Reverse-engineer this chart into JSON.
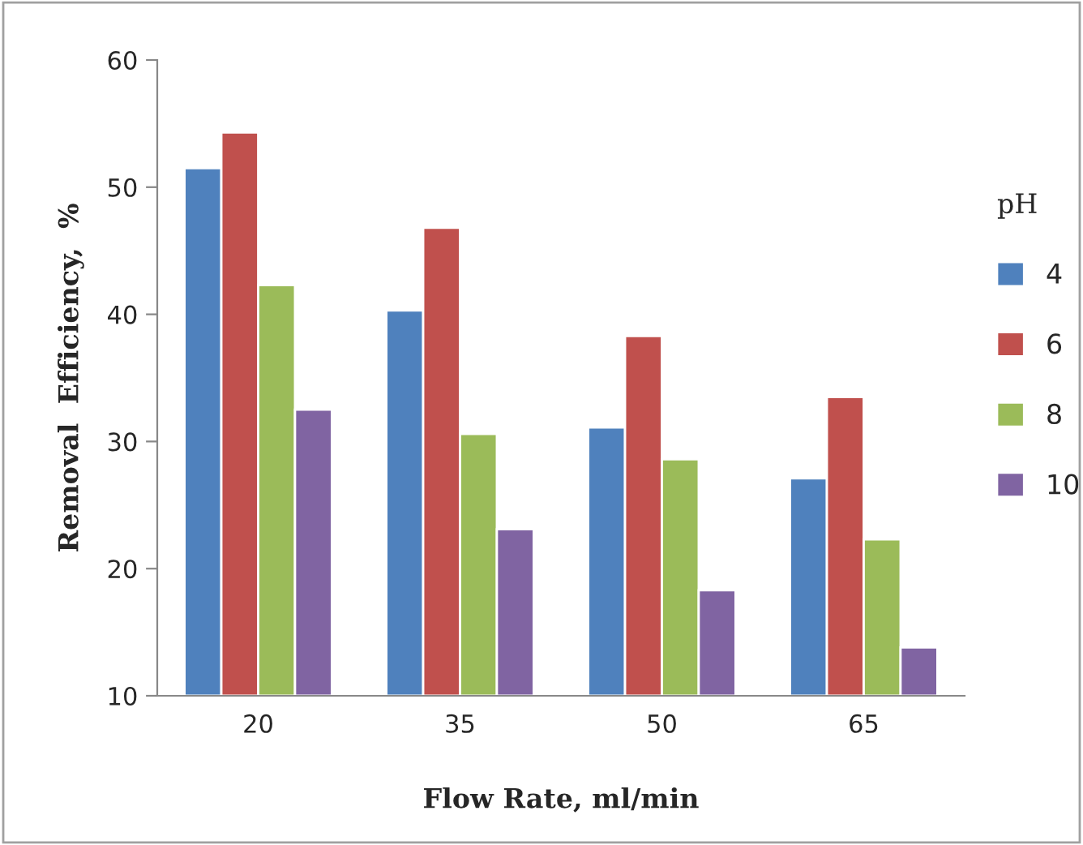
{
  "chart_data": {
    "type": "bar",
    "xlabel": "Flow Rate, ml/min",
    "ylabel": "Removal  Efficiency,  %",
    "legend_title": "pH",
    "categories": [
      "20",
      "35",
      "50",
      "65"
    ],
    "series": [
      {
        "name": "4",
        "color": "#4f81bd",
        "values": [
          51.5,
          40.3,
          31.1,
          27.1
        ]
      },
      {
        "name": "6",
        "color": "#c0504d",
        "values": [
          54.3,
          46.8,
          38.3,
          33.5
        ]
      },
      {
        "name": "8",
        "color": "#9bbb59",
        "values": [
          42.3,
          30.6,
          28.6,
          22.3
        ]
      },
      {
        "name": "10",
        "color": "#8064a2",
        "values": [
          32.5,
          23.1,
          18.3,
          13.8
        ]
      }
    ],
    "ylim": [
      10,
      60
    ],
    "yticks": [
      10,
      20,
      30,
      40,
      50,
      60
    ],
    "grid": false,
    "legend": "right"
  }
}
